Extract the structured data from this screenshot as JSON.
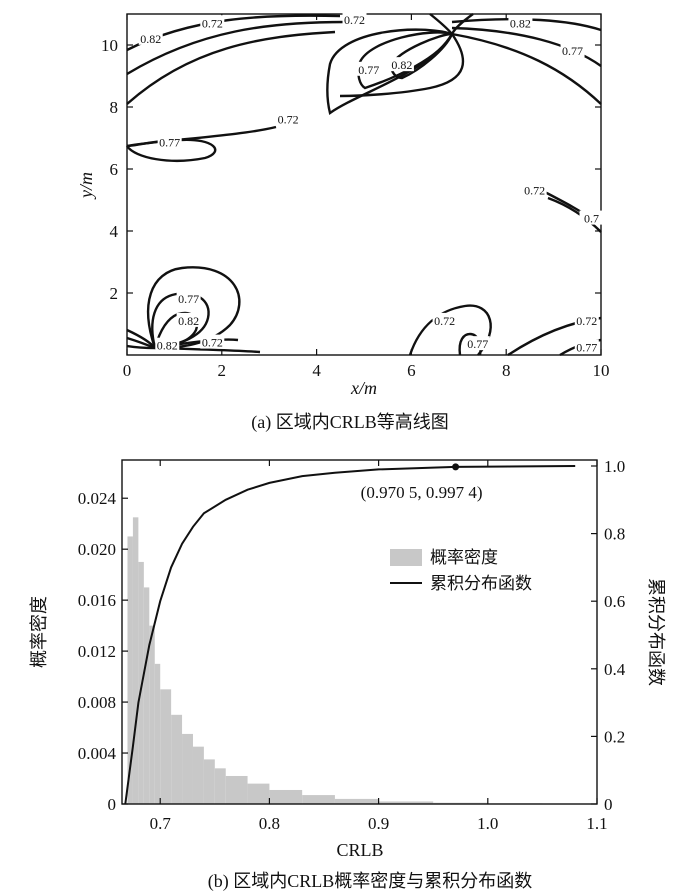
{
  "chart_data": [
    {
      "type": "contour",
      "caption": "(a) 区域内CRLB等高线图",
      "xlabel": "x/m",
      "ylabel": "y/m",
      "xlim": [
        0,
        10
      ],
      "ylim": [
        0,
        11
      ],
      "x_ticks": [
        0,
        2,
        4,
        6,
        8,
        10
      ],
      "y_ticks": [
        2,
        4,
        6,
        8,
        10
      ],
      "contour_levels": [
        0.72,
        0.77,
        0.82
      ],
      "contour_labels": [
        {
          "text": "0.72",
          "x": 1.8,
          "y": 10.7
        },
        {
          "text": "0.82",
          "x": 0.5,
          "y": 10.2
        },
        {
          "text": "0.72",
          "x": 4.8,
          "y": 10.8
        },
        {
          "text": "0.77",
          "x": 5.1,
          "y": 9.2
        },
        {
          "text": "0.82",
          "x": 5.8,
          "y": 9.35
        },
        {
          "text": "0.82",
          "x": 8.3,
          "y": 10.7
        },
        {
          "text": "0.77",
          "x": 9.4,
          "y": 9.8
        },
        {
          "text": "0.72",
          "x": 3.4,
          "y": 7.6
        },
        {
          "text": "0.77",
          "x": 0.9,
          "y": 6.85
        },
        {
          "text": "0.72",
          "x": 8.6,
          "y": 5.3
        },
        {
          "text": "0.7",
          "x": 9.8,
          "y": 4.4
        },
        {
          "text": "0.77",
          "x": 1.3,
          "y": 1.8
        },
        {
          "text": "0.82",
          "x": 1.3,
          "y": 1.1
        },
        {
          "text": "0.82",
          "x": 0.85,
          "y": 0.3
        },
        {
          "text": "0.72",
          "x": 1.8,
          "y": 0.4
        },
        {
          "text": "0.72",
          "x": 6.7,
          "y": 1.1
        },
        {
          "text": "0.77",
          "x": 7.4,
          "y": 0.35
        },
        {
          "text": "0.72",
          "x": 9.7,
          "y": 1.1
        },
        {
          "text": "0.77",
          "x": 9.7,
          "y": 0.25
        }
      ]
    },
    {
      "type": "histogram+line",
      "caption": "(b) 区域内CRLB概率密度与累积分布函数",
      "xlabel": "CRLB",
      "ylabel": "概率密度",
      "ylabel_right": "累积分布函数",
      "xlim": [
        0.665,
        1.1
      ],
      "ylim": [
        0,
        0.027
      ],
      "ylim_right": [
        0,
        1.0
      ],
      "x_ticks": [
        "0.7",
        "0.8",
        "0.9",
        "1.0",
        "1.1"
      ],
      "y_ticks": [
        "0",
        "0.004",
        "0.008",
        "0.012",
        "0.016",
        "0.020",
        "0.024"
      ],
      "y_ticks_right": [
        "0",
        "0.2",
        "0.4",
        "0.6",
        "0.8",
        "1.0"
      ],
      "legend": [
        "概率密度",
        "累积分布函数"
      ],
      "legend_location": "center-right",
      "annotation": {
        "text": "(0.970 5, 0.997 4)",
        "x": 0.9705,
        "y": 0.9974
      },
      "histogram_bins": [
        0.67,
        0.675,
        0.68,
        0.685,
        0.69,
        0.695,
        0.7,
        0.71,
        0.72,
        0.73,
        0.74,
        0.75,
        0.76,
        0.78,
        0.8,
        0.83,
        0.86,
        0.9,
        0.95,
        1.0
      ],
      "histogram_density": [
        0.021,
        0.0225,
        0.019,
        0.017,
        0.014,
        0.011,
        0.009,
        0.007,
        0.0055,
        0.0045,
        0.0035,
        0.0028,
        0.0022,
        0.0016,
        0.0011,
        0.0007,
        0.0004,
        0.0002,
        0.0001,
        5e-05
      ],
      "cdf_x": [
        0.668,
        0.675,
        0.68,
        0.69,
        0.7,
        0.71,
        0.72,
        0.73,
        0.74,
        0.76,
        0.78,
        0.8,
        0.83,
        0.86,
        0.9,
        0.9705,
        1.08
      ],
      "cdf_y": [
        0.0,
        0.17,
        0.3,
        0.47,
        0.6,
        0.7,
        0.77,
        0.82,
        0.86,
        0.9,
        0.93,
        0.95,
        0.97,
        0.98,
        0.99,
        0.9974,
        1.0
      ]
    }
  ]
}
